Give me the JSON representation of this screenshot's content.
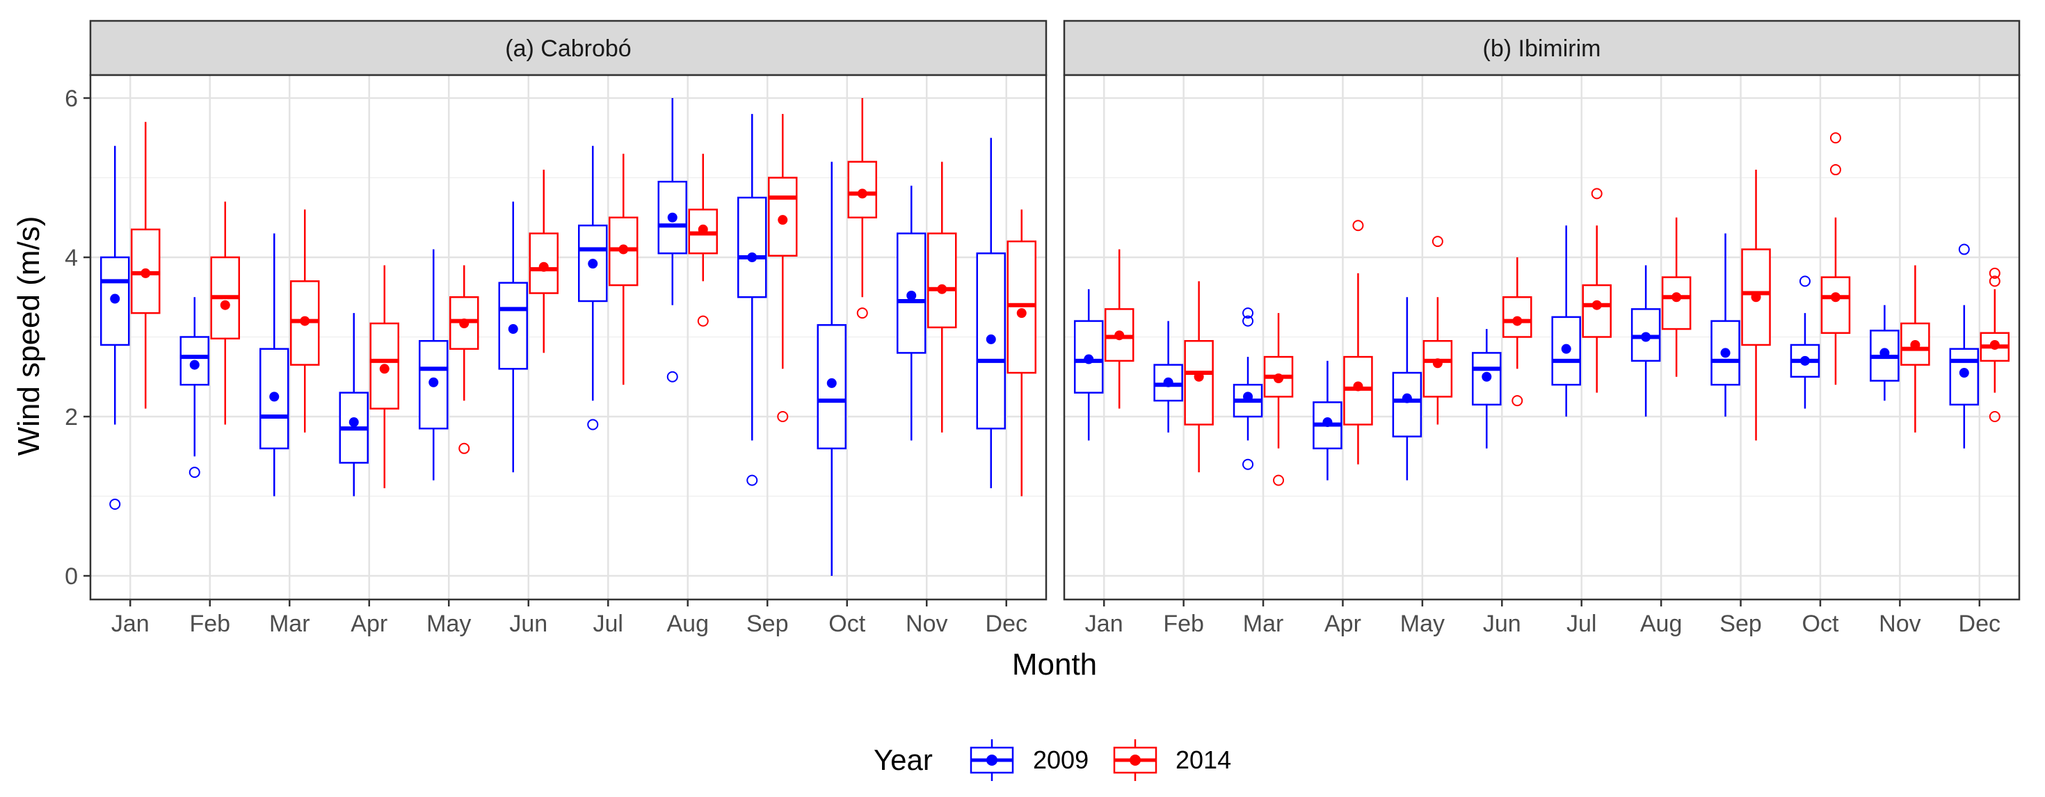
{
  "chart_data": {
    "type": "box",
    "ylabel": "Wind speed (m/s)",
    "xlabel": "Month",
    "ylim": [
      -0.25,
      6.3
    ],
    "yticks": [
      0,
      2,
      4,
      6
    ],
    "grid": true,
    "legend": {
      "title": "Year",
      "position": "bottom",
      "entries": [
        {
          "name": "2009",
          "color": "#0000ff"
        },
        {
          "name": "2014",
          "color": "#ff0000"
        }
      ]
    },
    "categories": [
      "Jan",
      "Feb",
      "Mar",
      "Apr",
      "May",
      "Jun",
      "Jul",
      "Aug",
      "Sep",
      "Oct",
      "Nov",
      "Dec"
    ],
    "panels": [
      {
        "title": "(a) Cabrobó",
        "series": [
          {
            "name": "2009",
            "color": "#0000ff",
            "boxes": [
              {
                "lo": 1.9,
                "q1": 2.9,
                "med": 3.7,
                "q3": 4.0,
                "hi": 5.4,
                "mean": 3.48,
                "out": [
                  0.9
                ]
              },
              {
                "lo": 1.5,
                "q1": 2.4,
                "med": 2.75,
                "q3": 3.0,
                "hi": 3.5,
                "mean": 2.65,
                "out": [
                  1.3
                ]
              },
              {
                "lo": 1.0,
                "q1": 1.6,
                "med": 2.0,
                "q3": 2.85,
                "hi": 4.3,
                "mean": 2.25,
                "out": []
              },
              {
                "lo": 1.0,
                "q1": 1.42,
                "med": 1.85,
                "q3": 2.3,
                "hi": 3.3,
                "mean": 1.93,
                "out": []
              },
              {
                "lo": 1.2,
                "q1": 1.85,
                "med": 2.6,
                "q3": 2.95,
                "hi": 4.1,
                "mean": 2.43,
                "out": []
              },
              {
                "lo": 1.3,
                "q1": 2.6,
                "med": 3.35,
                "q3": 3.68,
                "hi": 4.7,
                "mean": 3.1,
                "out": []
              },
              {
                "lo": 2.2,
                "q1": 3.45,
                "med": 4.1,
                "q3": 4.4,
                "hi": 5.4,
                "mean": 3.92,
                "out": [
                  1.9
                ]
              },
              {
                "lo": 3.4,
                "q1": 4.05,
                "med": 4.4,
                "q3": 4.95,
                "hi": 6.0,
                "mean": 4.5,
                "out": [
                  2.5
                ]
              },
              {
                "lo": 1.7,
                "q1": 3.5,
                "med": 4.0,
                "q3": 4.75,
                "hi": 5.8,
                "mean": 4.0,
                "out": [
                  1.2
                ]
              },
              {
                "lo": 0.0,
                "q1": 1.6,
                "med": 2.2,
                "q3": 3.15,
                "hi": 5.2,
                "mean": 2.42,
                "out": []
              },
              {
                "lo": 1.7,
                "q1": 2.8,
                "med": 3.45,
                "q3": 4.3,
                "hi": 4.9,
                "mean": 3.52,
                "out": []
              },
              {
                "lo": 1.1,
                "q1": 1.85,
                "med": 2.7,
                "q3": 4.05,
                "hi": 5.5,
                "mean": 2.97,
                "out": []
              }
            ]
          },
          {
            "name": "2014",
            "color": "#ff0000",
            "boxes": [
              {
                "lo": 2.1,
                "q1": 3.3,
                "med": 3.8,
                "q3": 4.35,
                "hi": 5.7,
                "mean": 3.8,
                "out": []
              },
              {
                "lo": 1.9,
                "q1": 2.98,
                "med": 3.5,
                "q3": 4.0,
                "hi": 4.7,
                "mean": 3.4,
                "out": []
              },
              {
                "lo": 1.8,
                "q1": 2.65,
                "med": 3.2,
                "q3": 3.7,
                "hi": 4.6,
                "mean": 3.2,
                "out": []
              },
              {
                "lo": 1.1,
                "q1": 2.1,
                "med": 2.7,
                "q3": 3.17,
                "hi": 3.9,
                "mean": 2.6,
                "out": []
              },
              {
                "lo": 2.2,
                "q1": 2.85,
                "med": 3.2,
                "q3": 3.5,
                "hi": 3.9,
                "mean": 3.17,
                "out": [
                  1.6
                ]
              },
              {
                "lo": 2.8,
                "q1": 3.55,
                "med": 3.85,
                "q3": 4.3,
                "hi": 5.1,
                "mean": 3.88,
                "out": []
              },
              {
                "lo": 2.4,
                "q1": 3.65,
                "med": 4.1,
                "q3": 4.5,
                "hi": 5.3,
                "mean": 4.1,
                "out": []
              },
              {
                "lo": 3.7,
                "q1": 4.05,
                "med": 4.3,
                "q3": 4.6,
                "hi": 5.3,
                "mean": 4.35,
                "out": [
                  3.2
                ]
              },
              {
                "lo": 2.6,
                "q1": 4.02,
                "med": 4.75,
                "q3": 5.0,
                "hi": 5.8,
                "mean": 4.47,
                "out": [
                  2.0
                ]
              },
              {
                "lo": 3.5,
                "q1": 4.5,
                "med": 4.8,
                "q3": 5.2,
                "hi": 6.0,
                "mean": 4.8,
                "out": [
                  3.3
                ]
              },
              {
                "lo": 1.8,
                "q1": 3.12,
                "med": 3.6,
                "q3": 4.3,
                "hi": 5.2,
                "mean": 3.6,
                "out": []
              },
              {
                "lo": 1.0,
                "q1": 2.55,
                "med": 3.4,
                "q3": 4.2,
                "hi": 4.6,
                "mean": 3.3,
                "out": []
              }
            ]
          }
        ]
      },
      {
        "title": "(b) Ibimirim",
        "series": [
          {
            "name": "2009",
            "color": "#0000ff",
            "boxes": [
              {
                "lo": 1.7,
                "q1": 2.3,
                "med": 2.7,
                "q3": 3.2,
                "hi": 3.6,
                "mean": 2.72,
                "out": []
              },
              {
                "lo": 1.8,
                "q1": 2.2,
                "med": 2.4,
                "q3": 2.65,
                "hi": 3.2,
                "mean": 2.43,
                "out": []
              },
              {
                "lo": 1.7,
                "q1": 2.0,
                "med": 2.2,
                "q3": 2.4,
                "hi": 2.75,
                "mean": 2.25,
                "out": [
                  3.3,
                  3.2,
                  1.4
                ]
              },
              {
                "lo": 1.2,
                "q1": 1.6,
                "med": 1.9,
                "q3": 2.18,
                "hi": 2.7,
                "mean": 1.93,
                "out": []
              },
              {
                "lo": 1.2,
                "q1": 1.75,
                "med": 2.2,
                "q3": 2.55,
                "hi": 3.5,
                "mean": 2.23,
                "out": []
              },
              {
                "lo": 1.6,
                "q1": 2.15,
                "med": 2.6,
                "q3": 2.8,
                "hi": 3.1,
                "mean": 2.5,
                "out": []
              },
              {
                "lo": 2.0,
                "q1": 2.4,
                "med": 2.7,
                "q3": 3.25,
                "hi": 4.4,
                "mean": 2.85,
                "out": []
              },
              {
                "lo": 2.0,
                "q1": 2.7,
                "med": 3.0,
                "q3": 3.35,
                "hi": 3.9,
                "mean": 3.0,
                "out": []
              },
              {
                "lo": 2.0,
                "q1": 2.4,
                "med": 2.7,
                "q3": 3.2,
                "hi": 4.3,
                "mean": 2.8,
                "out": []
              },
              {
                "lo": 2.1,
                "q1": 2.5,
                "med": 2.7,
                "q3": 2.9,
                "hi": 3.3,
                "mean": 2.7,
                "out": [
                  3.7
                ]
              },
              {
                "lo": 2.2,
                "q1": 2.45,
                "med": 2.75,
                "q3": 3.08,
                "hi": 3.4,
                "mean": 2.8,
                "out": []
              },
              {
                "lo": 1.6,
                "q1": 2.15,
                "med": 2.7,
                "q3": 2.85,
                "hi": 3.4,
                "mean": 2.55,
                "out": [
                  4.1
                ]
              }
            ]
          },
          {
            "name": "2014",
            "color": "#ff0000",
            "boxes": [
              {
                "lo": 2.1,
                "q1": 2.7,
                "med": 3.0,
                "q3": 3.35,
                "hi": 4.1,
                "mean": 3.02,
                "out": []
              },
              {
                "lo": 1.3,
                "q1": 1.9,
                "med": 2.55,
                "q3": 2.95,
                "hi": 3.7,
                "mean": 2.5,
                "out": []
              },
              {
                "lo": 1.6,
                "q1": 2.25,
                "med": 2.5,
                "q3": 2.75,
                "hi": 3.3,
                "mean": 2.48,
                "out": [
                  1.2
                ]
              },
              {
                "lo": 1.4,
                "q1": 1.9,
                "med": 2.35,
                "q3": 2.75,
                "hi": 3.8,
                "mean": 2.38,
                "out": [
                  4.4
                ]
              },
              {
                "lo": 1.9,
                "q1": 2.25,
                "med": 2.7,
                "q3": 2.95,
                "hi": 3.5,
                "mean": 2.67,
                "out": [
                  4.2
                ]
              },
              {
                "lo": 2.6,
                "q1": 3.0,
                "med": 3.2,
                "q3": 3.5,
                "hi": 4.0,
                "mean": 3.2,
                "out": [
                  2.2
                ]
              },
              {
                "lo": 2.3,
                "q1": 3.0,
                "med": 3.4,
                "q3": 3.65,
                "hi": 4.4,
                "mean": 3.4,
                "out": [
                  4.8
                ]
              },
              {
                "lo": 2.5,
                "q1": 3.1,
                "med": 3.5,
                "q3": 3.75,
                "hi": 4.5,
                "mean": 3.5,
                "out": []
              },
              {
                "lo": 1.7,
                "q1": 2.9,
                "med": 3.55,
                "q3": 4.1,
                "hi": 5.1,
                "mean": 3.5,
                "out": []
              },
              {
                "lo": 2.4,
                "q1": 3.05,
                "med": 3.5,
                "q3": 3.75,
                "hi": 4.5,
                "mean": 3.5,
                "out": [
                  5.5,
                  5.1
                ]
              },
              {
                "lo": 1.8,
                "q1": 2.65,
                "med": 2.85,
                "q3": 3.17,
                "hi": 3.9,
                "mean": 2.9,
                "out": []
              },
              {
                "lo": 2.3,
                "q1": 2.7,
                "med": 2.88,
                "q3": 3.05,
                "hi": 3.6,
                "mean": 2.9,
                "out": [
                  3.8,
                  3.7,
                  2.0
                ]
              }
            ]
          }
        ]
      }
    ]
  }
}
